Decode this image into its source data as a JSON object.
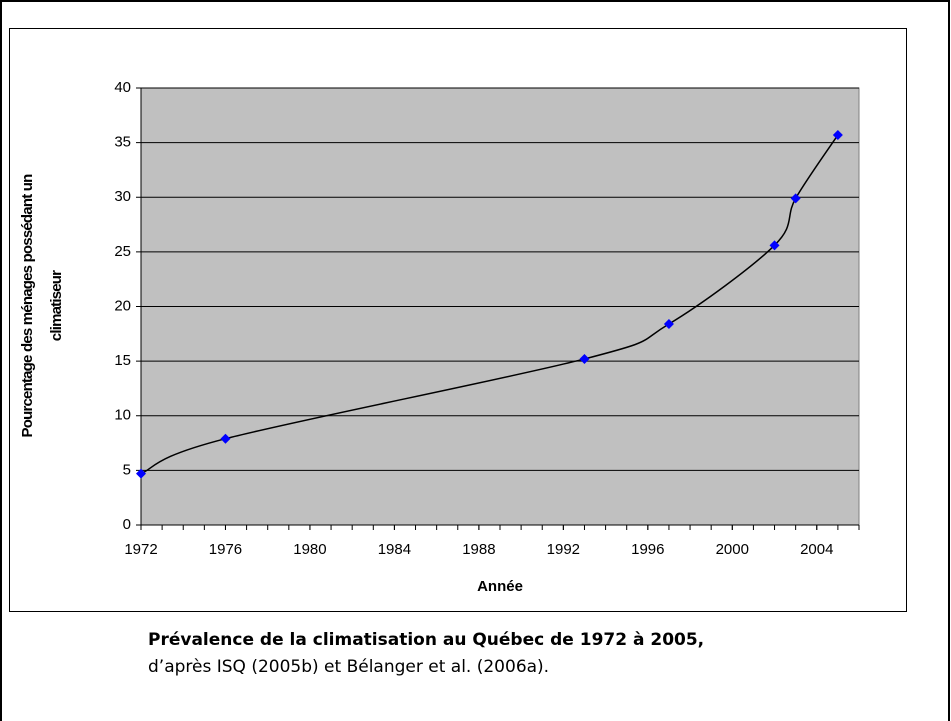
{
  "chart_data": {
    "type": "line",
    "xlabel": "Année",
    "ylabel": [
      "Pourcentage des ménages possédant un",
      "climatiseur"
    ],
    "x": [
      1972,
      1976,
      1993,
      1997,
      2002,
      2003,
      2005
    ],
    "series": [
      {
        "color": "#0000ff",
        "line_color": "#000000",
        "values": [
          4.7,
          7.9,
          15.2,
          18.4,
          25.6,
          29.9,
          35.7
        ]
      }
    ],
    "xlim": [
      1972,
      2006
    ],
    "xticks": [
      1972,
      1976,
      1980,
      1984,
      1988,
      1992,
      1996,
      2000,
      2004
    ],
    "xminorticks": [
      1972,
      1973,
      1974,
      1975,
      1976,
      1977,
      1978,
      1979,
      1980,
      1981,
      1982,
      1983,
      1984,
      1985,
      1986,
      1987,
      1988,
      1989,
      1990,
      1991,
      1992,
      1993,
      1994,
      1995,
      1996,
      1997,
      1998,
      1999,
      2000,
      2001,
      2002,
      2003,
      2004,
      2005,
      2006
    ],
    "ylim": [
      0,
      40
    ],
    "yticks": [
      0,
      5,
      10,
      15,
      20,
      25,
      30,
      35,
      40
    ],
    "grid": true,
    "plot_background": "#c0c0c0"
  },
  "caption": {
    "title": "Prévalence de la climatisation au Québec de 1972 à 2005,",
    "source": "d’après ISQ (2005b) et Bélanger et al. (2006a)."
  }
}
